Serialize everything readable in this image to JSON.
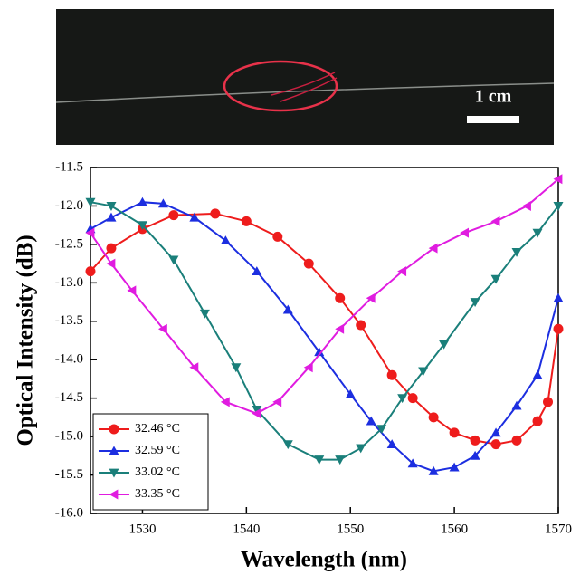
{
  "photo": {
    "scale_label": "1 cm"
  },
  "chart_data": {
    "type": "line",
    "x_label": "Wavelength (nm)",
    "y_label": "Optical Intensity (dB)",
    "xlim": [
      1525,
      1570
    ],
    "xticks": [
      1530,
      1540,
      1550,
      1560,
      1570
    ],
    "ylim": [
      -16,
      -11.5
    ],
    "yticks": [
      -11.5,
      {
        "value": -12,
        "label": "-12.0"
      },
      -12.5,
      {
        "value": -13,
        "label": "-13.0"
      },
      -13.5,
      {
        "value": -14,
        "label": "-14.0"
      },
      -14.5,
      {
        "value": -15,
        "label": "-15.0"
      },
      -15.5,
      {
        "value": -16,
        "label": "-16.0"
      }
    ],
    "legend": "lower left",
    "series": [
      {
        "name": "32.46 °C",
        "color": "#ee1c1c",
        "marker": "circle",
        "x": [
          1525,
          1527,
          1530,
          1533,
          1537,
          1540,
          1543,
          1546,
          1549,
          1551,
          1554,
          1556,
          1558,
          1560,
          1562,
          1564,
          1566,
          1568,
          1569,
          1570
        ],
        "values": [
          -12.85,
          -12.55,
          -12.3,
          -12.12,
          -12.1,
          -12.2,
          -12.4,
          -12.75,
          -13.2,
          -13.55,
          -14.2,
          -14.5,
          -14.75,
          -14.95,
          -15.05,
          -15.1,
          -15.05,
          -14.8,
          -14.55,
          -13.6
        ]
      },
      {
        "name": "32.59 °C",
        "color": "#1c2ee0",
        "marker": "triangle-up",
        "x": [
          1525,
          1527,
          1530,
          1532,
          1535,
          1538,
          1541,
          1544,
          1547,
          1550,
          1552,
          1554,
          1556,
          1558,
          1560,
          1562,
          1564,
          1566,
          1568,
          1570
        ],
        "values": [
          -12.3,
          -12.15,
          -11.95,
          -11.97,
          -12.15,
          -12.45,
          -12.85,
          -13.35,
          -13.9,
          -14.45,
          -14.8,
          -15.1,
          -15.35,
          -15.45,
          -15.4,
          -15.25,
          -14.95,
          -14.6,
          -14.2,
          -13.2
        ]
      },
      {
        "name": "33.02 °C",
        "color": "#1a7f7a",
        "marker": "triangle-down",
        "x": [
          1525,
          1527,
          1530,
          1533,
          1536,
          1539,
          1541,
          1544,
          1547,
          1549,
          1551,
          1553,
          1555,
          1557,
          1559,
          1562,
          1564,
          1566,
          1568,
          1570
        ],
        "values": [
          -11.95,
          -12.0,
          -12.25,
          -12.7,
          -13.4,
          -14.1,
          -14.65,
          -15.1,
          -15.3,
          -15.3,
          -15.15,
          -14.9,
          -14.5,
          -14.15,
          -13.8,
          -13.25,
          -12.95,
          -12.6,
          -12.35,
          -12.0
        ]
      },
      {
        "name": "33.35 °C",
        "color": "#e01ce0",
        "marker": "triangle-left",
        "x": [
          1525,
          1527,
          1529,
          1532,
          1535,
          1538,
          1541,
          1543,
          1546,
          1549,
          1552,
          1555,
          1558,
          1561,
          1564,
          1567,
          1570
        ],
        "values": [
          -12.35,
          -12.75,
          -13.1,
          -13.6,
          -14.1,
          -14.55,
          -14.7,
          -14.55,
          -14.1,
          -13.6,
          -13.2,
          -12.85,
          -12.55,
          -12.35,
          -12.2,
          -12.0,
          -11.65
        ]
      }
    ]
  }
}
